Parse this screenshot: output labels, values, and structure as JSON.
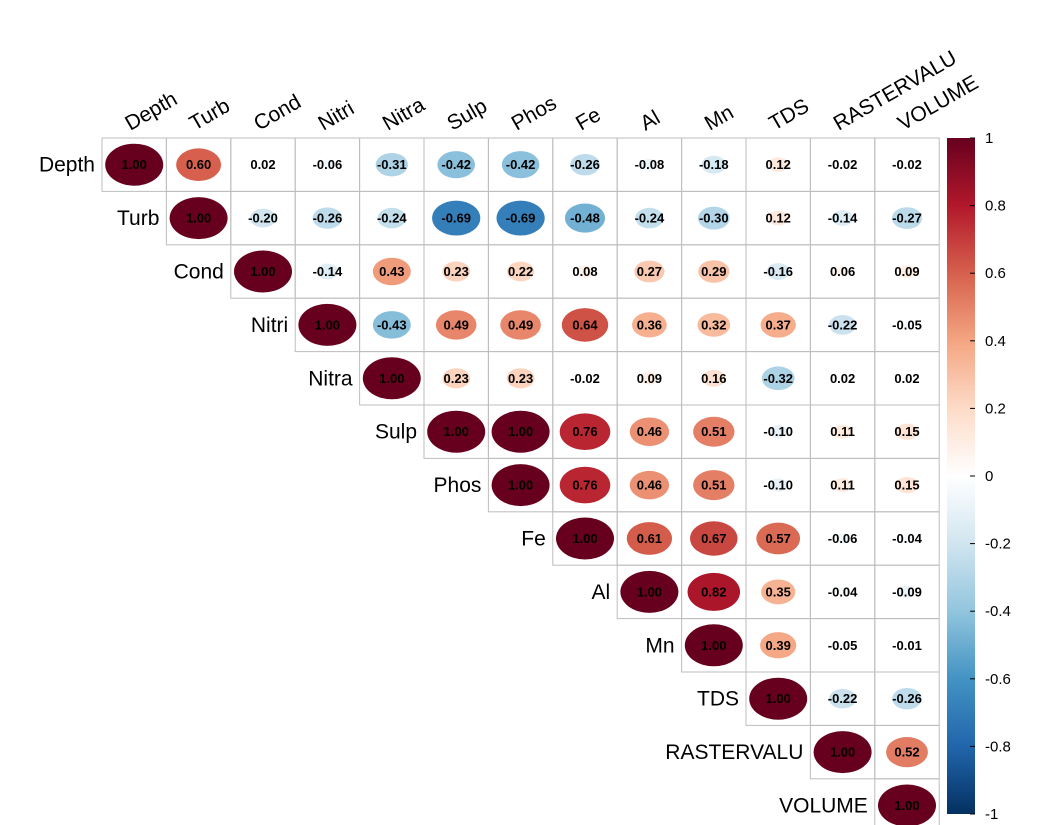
{
  "chart_data": {
    "type": "heatmap",
    "layout": "upper-triangle correlation matrix",
    "variables": [
      "Depth",
      "Turb",
      "Cond",
      "Nitri",
      "Nitra",
      "Sulp",
      "Phos",
      "Fe",
      "Al",
      "Mn",
      "TDS",
      "RASTERVALU",
      "VOLUME"
    ],
    "matrix": [
      [
        1.0,
        0.6,
        0.02,
        -0.06,
        -0.31,
        -0.42,
        -0.42,
        -0.26,
        -0.08,
        -0.18,
        0.12,
        -0.02,
        -0.02
      ],
      [
        null,
        1.0,
        -0.2,
        -0.26,
        -0.24,
        -0.69,
        -0.69,
        -0.48,
        -0.24,
        -0.3,
        0.12,
        -0.14,
        -0.27
      ],
      [
        null,
        null,
        1.0,
        -0.14,
        0.43,
        0.23,
        0.22,
        0.08,
        0.27,
        0.29,
        -0.16,
        0.06,
        0.09
      ],
      [
        null,
        null,
        null,
        1.0,
        -0.43,
        0.49,
        0.49,
        0.64,
        0.36,
        0.32,
        0.37,
        -0.22,
        -0.05
      ],
      [
        null,
        null,
        null,
        null,
        1.0,
        0.23,
        0.23,
        -0.02,
        0.09,
        0.16,
        -0.32,
        0.02,
        0.02
      ],
      [
        null,
        null,
        null,
        null,
        null,
        1.0,
        1.0,
        0.76,
        0.46,
        0.51,
        -0.1,
        0.11,
        0.15
      ],
      [
        null,
        null,
        null,
        null,
        null,
        null,
        1.0,
        0.76,
        0.46,
        0.51,
        -0.1,
        0.11,
        0.15
      ],
      [
        null,
        null,
        null,
        null,
        null,
        null,
        null,
        1.0,
        0.61,
        0.67,
        0.57,
        -0.06,
        -0.04
      ],
      [
        null,
        null,
        null,
        null,
        null,
        null,
        null,
        null,
        1.0,
        0.82,
        0.35,
        -0.04,
        -0.09
      ],
      [
        null,
        null,
        null,
        null,
        null,
        null,
        null,
        null,
        null,
        1.0,
        0.39,
        -0.05,
        -0.01
      ],
      [
        null,
        null,
        null,
        null,
        null,
        null,
        null,
        null,
        null,
        null,
        1.0,
        -0.22,
        -0.26
      ],
      [
        null,
        null,
        null,
        null,
        null,
        null,
        null,
        null,
        null,
        null,
        null,
        1.0,
        0.52
      ],
      [
        null,
        null,
        null,
        null,
        null,
        null,
        null,
        null,
        null,
        null,
        null,
        null,
        1.0
      ]
    ],
    "colorbar": {
      "range": [
        -1,
        1
      ],
      "ticks": [
        "1",
        "0.8",
        "0.6",
        "0.4",
        "0.2",
        "0",
        "-0.2",
        "-0.4",
        "-0.6",
        "-0.8",
        "-1"
      ],
      "colors": [
        "#67001F",
        "#B2182B",
        "#D6604D",
        "#F4A582",
        "#FDDBC7",
        "#FFFFFF",
        "#D1E5F0",
        "#92C5DE",
        "#4393C3",
        "#2166AC",
        "#053061"
      ]
    },
    "grid": true,
    "title": "",
    "xlabel": "",
    "ylabel": ""
  }
}
